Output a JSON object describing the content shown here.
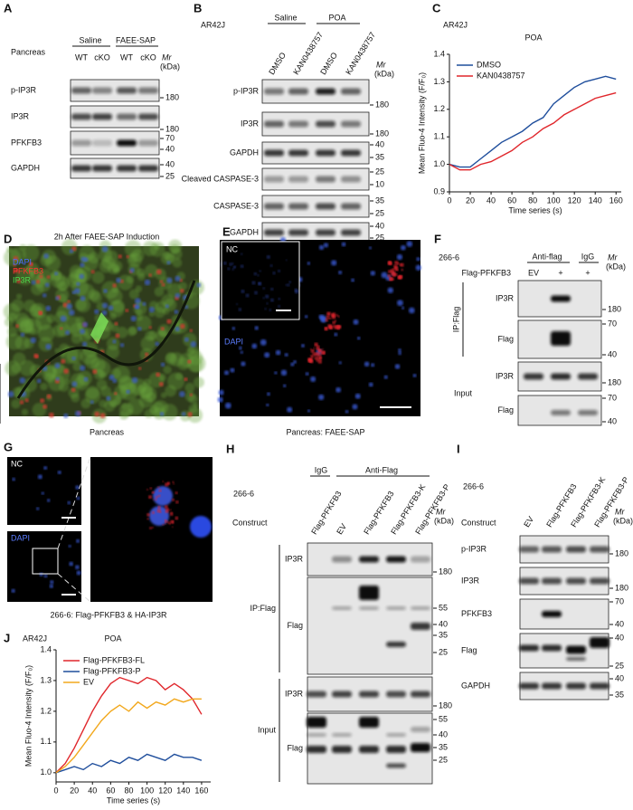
{
  "panels": {
    "A": {
      "label": "A",
      "tissue": "Pancreas",
      "groups": [
        "Saline",
        "FAEE-SAP"
      ],
      "lanes": [
        "WT",
        "cKO",
        "WT",
        "cKO"
      ],
      "mr": "Mr",
      "unit": "(kDa)",
      "rows": [
        {
          "name": "p-IP3R",
          "markers": [
            180
          ]
        },
        {
          "name": "IP3R",
          "markers": [
            180
          ]
        },
        {
          "name": "PFKFB3",
          "markers": [
            70,
            40
          ]
        },
        {
          "name": "GAPDH",
          "markers": [
            40,
            25
          ]
        }
      ]
    },
    "B": {
      "label": "B",
      "cell": "AR42J",
      "groups": [
        "Saline",
        "POA"
      ],
      "lanes": [
        "DMSO",
        "KAN0438757",
        "DMSO",
        "KAN0438757"
      ],
      "mr": "Mr",
      "unit": "(kDa)",
      "rows": [
        {
          "name": "p-IP3R",
          "markers": [
            180
          ]
        },
        {
          "name": "IP3R",
          "markers": [
            180
          ]
        },
        {
          "name": "GAPDH",
          "markers": [
            40,
            35
          ]
        },
        {
          "name": "Cleaved CASPASE-3",
          "markers": [
            25,
            10
          ]
        },
        {
          "name": "CASPASE-3",
          "markers": [
            35,
            25
          ]
        },
        {
          "name": "GAPDH",
          "markers": [
            40,
            25
          ]
        }
      ]
    },
    "D": {
      "label": "D",
      "title": "2h After FAEE-SAP Induction",
      "channels": [
        "DAPI",
        "PFKFB3",
        "IP3R"
      ],
      "caption": "Pancreas"
    },
    "E": {
      "label": "E",
      "inset": "NC",
      "channel": "DAPI",
      "caption": "Pancreas: FAEE-SAP"
    },
    "F": {
      "label": "F",
      "cell": "266-6",
      "groups": [
        "Anti-flag",
        "IgG"
      ],
      "construct": "Flag-PFKFB3",
      "lanes": [
        "EV",
        "+",
        "+"
      ],
      "mr": "Mr",
      "unit": "(kDa)",
      "sections": [
        {
          "name": "IP:Flag",
          "rows": [
            {
              "name": "IP3R",
              "markers": [
                180
              ]
            },
            {
              "name": "Flag",
              "markers": [
                70,
                40
              ]
            }
          ]
        },
        {
          "name": "Input",
          "rows": [
            {
              "name": "IP3R",
              "markers": [
                180
              ]
            },
            {
              "name": "Flag",
              "markers": [
                70,
                40
              ]
            }
          ]
        }
      ]
    },
    "G": {
      "label": "G",
      "inset": "NC",
      "channel": "DAPI",
      "caption": "266-6: Flag-PFKFB3 & HA-IP3R"
    },
    "H": {
      "label": "H",
      "cell": "266-6",
      "groups": [
        "IgG",
        "Anti-Flag"
      ],
      "construct": "Construct",
      "lanes": [
        "Flag-PFKFB3",
        "EV",
        "Flag-PFKFB3",
        "Flag-PFKFB3-K",
        "Flag-PFKFB3-P"
      ],
      "mr": "Mr",
      "unit": "(kDa)",
      "sections": [
        {
          "name": "IP:Flag",
          "rows": [
            {
              "name": "IP3R",
              "markers": [
                180
              ]
            },
            {
              "name": "Flag",
              "markers": [
                55,
                40,
                35,
                25
              ]
            }
          ]
        },
        {
          "name": "Input",
          "rows": [
            {
              "name": "IP3R",
              "markers": [
                180
              ]
            },
            {
              "name": "Flag",
              "markers": [
                55,
                40,
                35,
                25
              ]
            }
          ]
        }
      ]
    },
    "I": {
      "label": "I",
      "cell": "266-6",
      "construct": "Construct",
      "lanes": [
        "EV",
        "Flag-PFKFB3",
        "Flag-PFKFB3-K",
        "Flag-PFKFB3-P"
      ],
      "mr": "Mr",
      "unit": "(kDa)",
      "rows": [
        {
          "name": "p-IP3R",
          "markers": [
            180
          ]
        },
        {
          "name": "IP3R",
          "markers": [
            180
          ]
        },
        {
          "name": "PFKFB3",
          "markers": [
            70,
            40
          ]
        },
        {
          "name": "Flag",
          "markers": [
            40,
            25
          ]
        },
        {
          "name": "GAPDH",
          "markers": [
            40,
            35
          ]
        }
      ]
    }
  },
  "chart_data": [
    {
      "type": "line",
      "label": "C",
      "subtitle": "AR42J",
      "title": "POA",
      "x_label": "Time series (s)",
      "y_label": "Mean Fluo-4 Intensity (F/F₀)",
      "legend": "upper left",
      "x": [
        0,
        10,
        20,
        30,
        40,
        50,
        60,
        70,
        80,
        90,
        100,
        110,
        120,
        130,
        140,
        150,
        160
      ],
      "series": [
        {
          "name": "DMSO",
          "color": "#1f4e9c",
          "values": [
            1.0,
            0.99,
            0.99,
            1.02,
            1.05,
            1.08,
            1.1,
            1.12,
            1.15,
            1.17,
            1.22,
            1.25,
            1.28,
            1.3,
            1.31,
            1.32,
            1.31
          ]
        },
        {
          "name": "KAN0438757",
          "color": "#e0262b",
          "values": [
            1.0,
            0.98,
            0.98,
            1.0,
            1.01,
            1.03,
            1.05,
            1.08,
            1.1,
            1.13,
            1.15,
            1.18,
            1.2,
            1.22,
            1.24,
            1.25,
            1.26
          ]
        }
      ],
      "xlim": [
        0,
        165
      ],
      "ylim": [
        0.9,
        1.4
      ],
      "xticks": [
        0,
        20,
        40,
        60,
        80,
        100,
        120,
        140,
        160
      ],
      "yticks": [
        0.9,
        {
          "value": 1,
          "label": "1.0"
        },
        1.1,
        1.2,
        1.3,
        1.4
      ]
    },
    {
      "type": "line",
      "label": "J",
      "subtitle": "AR42J",
      "title": "POA",
      "x_label": "Time series (s)",
      "y_label": "Mean Fluo-4 Intensity (F/F₀)",
      "legend": "upper left",
      "x": [
        0,
        10,
        20,
        30,
        40,
        50,
        60,
        70,
        80,
        90,
        100,
        110,
        120,
        130,
        140,
        150,
        160
      ],
      "series": [
        {
          "name": "Flag-PFKFB3-FL",
          "color": "#e0262b",
          "values": [
            1.0,
            1.03,
            1.08,
            1.14,
            1.2,
            1.25,
            1.29,
            1.31,
            1.3,
            1.29,
            1.31,
            1.3,
            1.27,
            1.29,
            1.27,
            1.24,
            1.19
          ]
        },
        {
          "name": "Flag-PFKFB3-P",
          "color": "#1f4e9c",
          "values": [
            1.0,
            1.01,
            1.02,
            1.01,
            1.03,
            1.02,
            1.04,
            1.03,
            1.05,
            1.04,
            1.06,
            1.05,
            1.04,
            1.06,
            1.05,
            1.05,
            1.04
          ]
        },
        {
          "name": "EV",
          "color": "#f2a81d",
          "values": [
            1.0,
            1.02,
            1.05,
            1.09,
            1.13,
            1.17,
            1.2,
            1.22,
            1.2,
            1.23,
            1.21,
            1.23,
            1.22,
            1.24,
            1.23,
            1.24,
            1.24
          ]
        }
      ],
      "xlim": [
        0,
        170
      ],
      "ylim": [
        0.97,
        1.4
      ],
      "xticks": [
        0,
        20,
        40,
        60,
        80,
        100,
        120,
        140,
        160
      ],
      "yticks": [
        {
          "value": 1,
          "label": "1.0"
        },
        1.1,
        1.2,
        1.3,
        1.4
      ]
    }
  ]
}
